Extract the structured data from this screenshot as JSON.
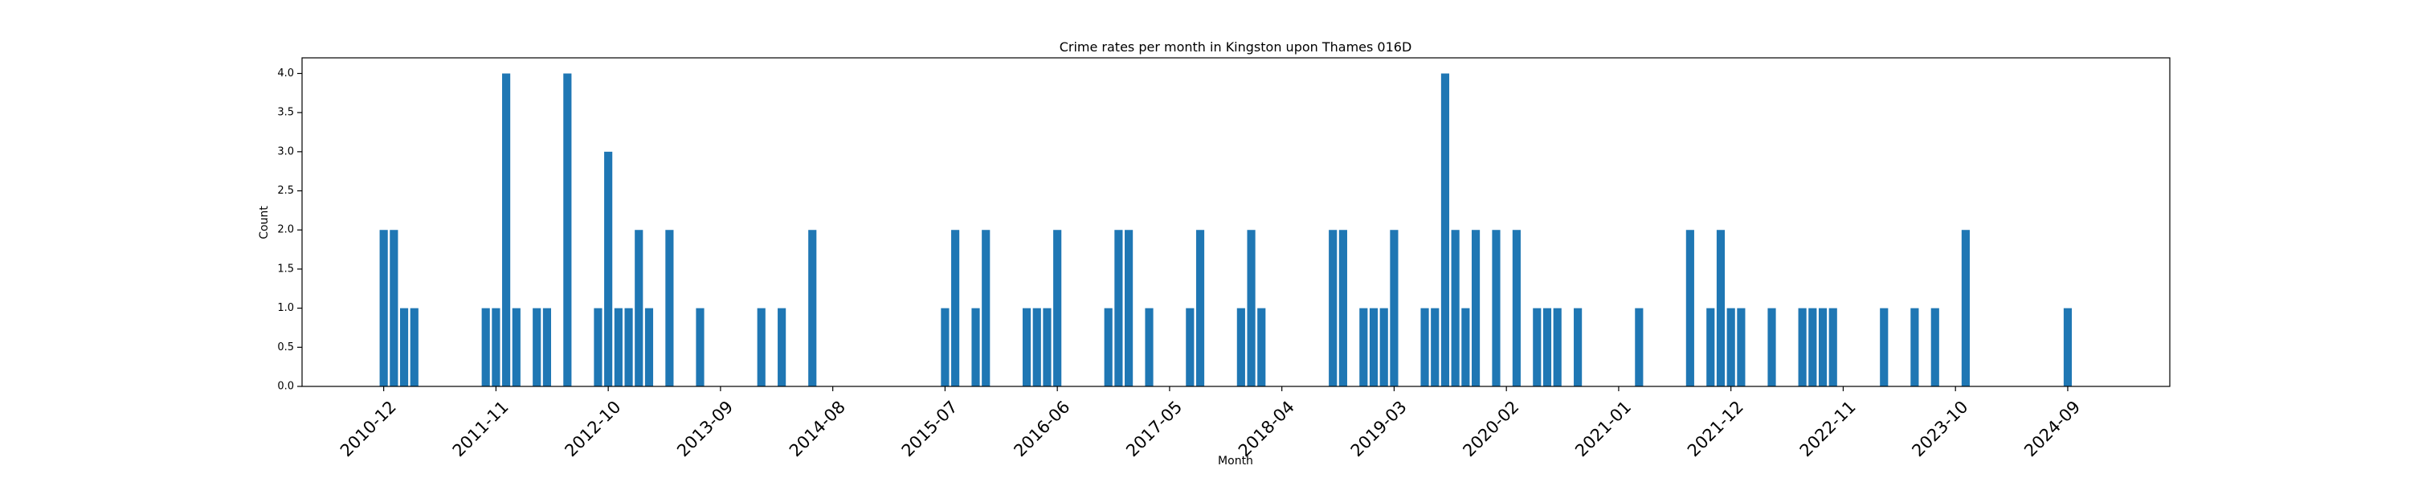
{
  "chart_data": {
    "type": "bar",
    "title": "Crime rates per month in Kingston upon Thames 016D",
    "xlabel": "Month",
    "ylabel": "Count",
    "ylim": [
      0,
      4.2
    ],
    "y_ticks": [
      0.0,
      0.5,
      1.0,
      1.5,
      2.0,
      2.5,
      3.0,
      3.5,
      4.0
    ],
    "y_tick_labels": [
      "0.0",
      "0.5",
      "1.0",
      "1.5",
      "2.0",
      "2.5",
      "3.0",
      "3.5",
      "4.0"
    ],
    "x_ticks": [
      "2010-12",
      "2011-11",
      "2012-10",
      "2013-09",
      "2014-08",
      "2015-07",
      "2016-06",
      "2017-05",
      "2018-04",
      "2019-03",
      "2020-02",
      "2021-01",
      "2021-12",
      "2022-11",
      "2023-10",
      "2024-09"
    ],
    "x_range": [
      "2010-04",
      "2025-07"
    ],
    "grid": false,
    "bar_color": "#1f77b4",
    "categories": [
      "2010-12",
      "2011-01",
      "2011-02",
      "2011-03",
      "2011-10",
      "2011-11",
      "2011-12",
      "2012-01",
      "2012-03",
      "2012-04",
      "2012-06",
      "2012-09",
      "2012-10",
      "2012-11",
      "2012-12",
      "2013-01",
      "2013-02",
      "2013-04",
      "2013-07",
      "2014-01",
      "2014-03",
      "2014-06",
      "2015-07",
      "2015-08",
      "2015-10",
      "2015-11",
      "2016-03",
      "2016-04",
      "2016-05",
      "2016-06",
      "2016-11",
      "2016-12",
      "2017-01",
      "2017-03",
      "2017-07",
      "2017-08",
      "2017-12",
      "2018-01",
      "2018-02",
      "2018-09",
      "2018-10",
      "2018-12",
      "2019-01",
      "2019-02",
      "2019-03",
      "2019-06",
      "2019-07",
      "2019-08",
      "2019-09",
      "2019-10",
      "2019-11",
      "2020-01",
      "2020-03",
      "2020-05",
      "2020-06",
      "2020-07",
      "2020-09",
      "2021-03",
      "2021-08",
      "2021-10",
      "2021-11",
      "2021-12",
      "2022-01",
      "2022-04",
      "2022-07",
      "2022-08",
      "2022-09",
      "2022-10",
      "2023-03",
      "2023-06",
      "2023-08",
      "2023-11",
      "2024-09"
    ],
    "values": [
      2,
      2,
      1,
      1,
      1,
      1,
      4,
      1,
      1,
      1,
      4,
      1,
      3,
      1,
      1,
      2,
      1,
      2,
      1,
      1,
      1,
      2,
      1,
      2,
      1,
      2,
      1,
      1,
      1,
      2,
      1,
      2,
      2,
      1,
      1,
      2,
      1,
      2,
      1,
      2,
      2,
      1,
      1,
      1,
      2,
      1,
      1,
      4,
      2,
      1,
      2,
      2,
      2,
      1,
      1,
      1,
      1,
      1,
      2,
      1,
      2,
      1,
      1,
      1,
      1,
      1,
      1,
      1,
      1,
      1,
      1,
      2,
      1
    ]
  }
}
